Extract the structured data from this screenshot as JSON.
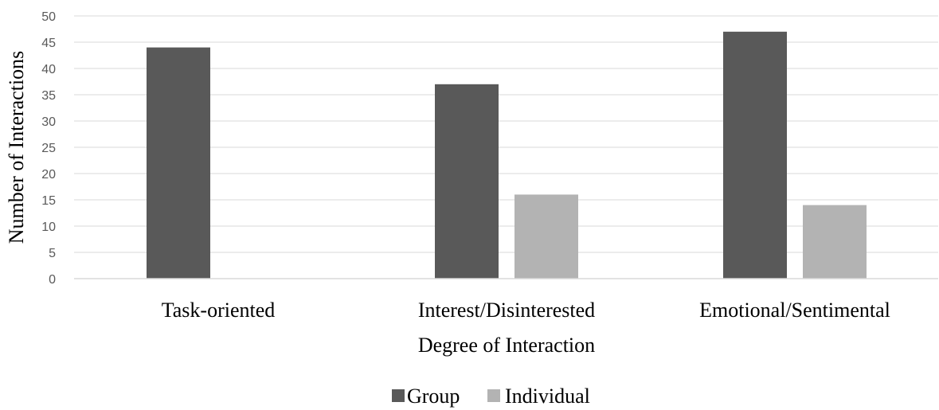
{
  "chart_data": {
    "type": "bar",
    "categories": [
      "Task-oriented",
      "Interest/Disinterested",
      "Emotional/Sentimental"
    ],
    "series": [
      {
        "name": "Group",
        "values": [
          44,
          37,
          47
        ],
        "color": "#595959"
      },
      {
        "name": "Individual",
        "values": [
          0,
          16,
          14
        ],
        "color": "#b3b3b3"
      }
    ],
    "title": "",
    "xlabel": "Degree of Interaction",
    "ylabel": "Number of Interactions",
    "ylim": [
      0,
      50
    ],
    "yticks": [
      0,
      5,
      10,
      15,
      20,
      25,
      30,
      35,
      40,
      45,
      50
    ],
    "grid": true,
    "legend": "bottom-center",
    "gridline_color": "#d9d9d9"
  }
}
